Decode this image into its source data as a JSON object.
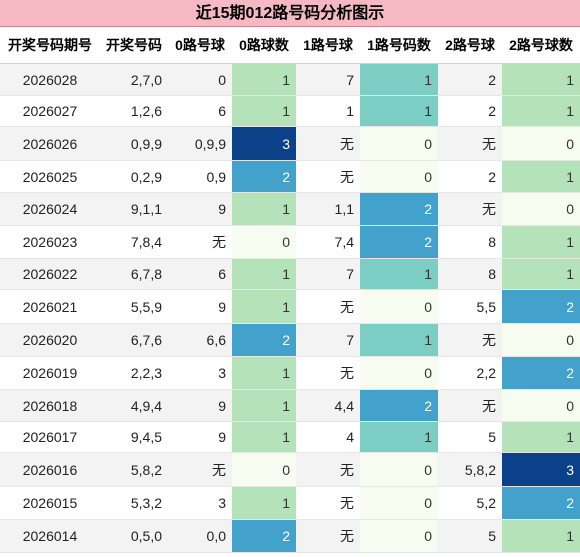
{
  "title": "近15期012路号码分析图示",
  "headers": [
    "开奖号码期号",
    "开奖号码",
    "0路号球",
    "0路球数",
    "1路号球",
    "1路号码数",
    "2路号球",
    "2路号球数"
  ],
  "rows": [
    {
      "issue": "2026028",
      "numbers": "2,7,0",
      "r0": "0",
      "c0": "1",
      "r1": "7",
      "c1": "1",
      "r2": "2",
      "c2": "1"
    },
    {
      "issue": "2026027",
      "numbers": "1,2,6",
      "r0": "6",
      "c0": "1",
      "r1": "1",
      "c1": "1",
      "r2": "2",
      "c2": "1"
    },
    {
      "issue": "2026026",
      "numbers": "0,9,9",
      "r0": "0,9,9",
      "c0": "3",
      "r1": "无",
      "c1": "0",
      "r2": "无",
      "c2": "0"
    },
    {
      "issue": "2026025",
      "numbers": "0,2,9",
      "r0": "0,9",
      "c0": "2",
      "r1": "无",
      "c1": "0",
      "r2": "2",
      "c2": "1"
    },
    {
      "issue": "2026024",
      "numbers": "9,1,1",
      "r0": "9",
      "c0": "1",
      "r1": "1,1",
      "c1": "2",
      "r2": "无",
      "c2": "0"
    },
    {
      "issue": "2026023",
      "numbers": "7,8,4",
      "r0": "无",
      "c0": "0",
      "r1": "7,4",
      "c1": "2",
      "r2": "8",
      "c2": "1"
    },
    {
      "issue": "2026022",
      "numbers": "6,7,8",
      "r0": "6",
      "c0": "1",
      "r1": "7",
      "c1": "1",
      "r2": "8",
      "c2": "1"
    },
    {
      "issue": "2026021",
      "numbers": "5,5,9",
      "r0": "9",
      "c0": "1",
      "r1": "无",
      "c1": "0",
      "r2": "5,5",
      "c2": "2"
    },
    {
      "issue": "2026020",
      "numbers": "6,7,6",
      "r0": "6,6",
      "c0": "2",
      "r1": "7",
      "c1": "1",
      "r2": "无",
      "c2": "0"
    },
    {
      "issue": "2026019",
      "numbers": "2,2,3",
      "r0": "3",
      "c0": "1",
      "r1": "无",
      "c1": "0",
      "r2": "2,2",
      "c2": "2"
    },
    {
      "issue": "2026018",
      "numbers": "4,9,4",
      "r0": "9",
      "c0": "1",
      "r1": "4,4",
      "c1": "2",
      "r2": "无",
      "c2": "0"
    },
    {
      "issue": "2026017",
      "numbers": "9,4,5",
      "r0": "9",
      "c0": "1",
      "r1": "4",
      "c1": "1",
      "r2": "5",
      "c2": "1"
    },
    {
      "issue": "2026016",
      "numbers": "5,8,2",
      "r0": "无",
      "c0": "0",
      "r1": "无",
      "c1": "0",
      "r2": "5,8,2",
      "c2": "3"
    },
    {
      "issue": "2026015",
      "numbers": "5,3,2",
      "r0": "3",
      "c0": "1",
      "r1": "无",
      "c1": "0",
      "r2": "5,2",
      "c2": "2"
    },
    {
      "issue": "2026014",
      "numbers": "0,5,0",
      "r0": "0,0",
      "c0": "2",
      "r1": "无",
      "c1": "0",
      "r2": "5",
      "c2": "1"
    }
  ],
  "colors": {
    "title_bg": "#f6b9c4",
    "count_0": "#f7fcf0",
    "count_1_green": "#b4e2b9",
    "count_1_teal": "#7ccdc4",
    "count_2": "#43a2cb",
    "count_3": "#0b4188"
  }
}
